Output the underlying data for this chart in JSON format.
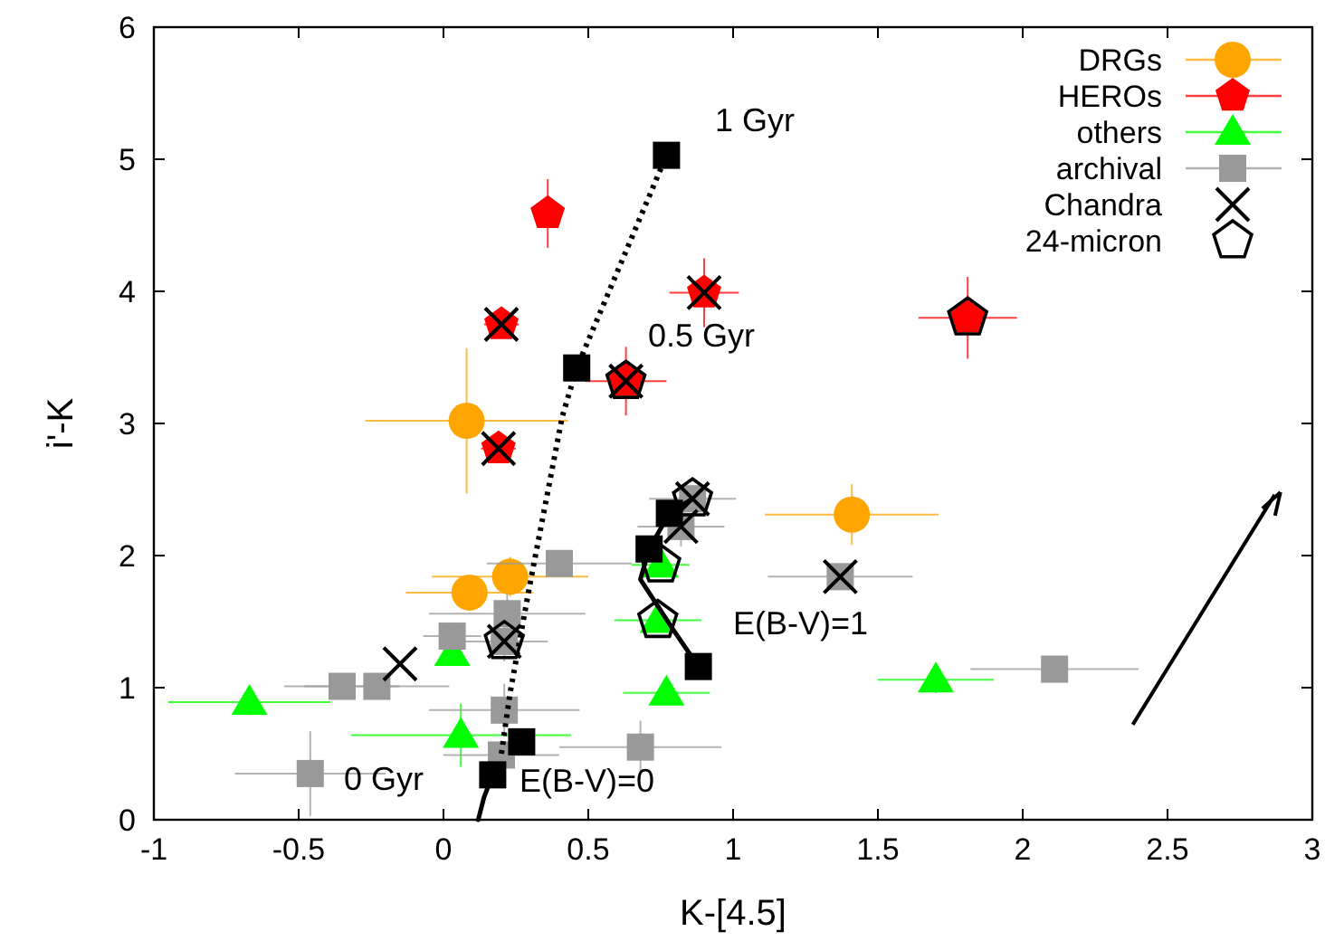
{
  "chart_data": {
    "type": "scatter",
    "xlabel": "K-[4.5]",
    "ylabel": "i'-K",
    "xlim": [
      -1,
      3
    ],
    "ylim": [
      0,
      6
    ],
    "xticks": [
      -1,
      -0.5,
      0,
      0.5,
      1,
      1.5,
      2,
      2.5,
      3
    ],
    "yticks": [
      0,
      1,
      2,
      3,
      4,
      5,
      6
    ],
    "grid": false,
    "legend": "top right",
    "series": [
      {
        "name": "DRGs",
        "marker": "circle",
        "color": "#ffa500",
        "x": [
          0.08,
          0.09,
          0.23,
          1.41
        ],
        "values": [
          3.02,
          1.72,
          1.84,
          2.31
        ],
        "xerrors": [
          0.35,
          0.22,
          0.27,
          0.3
        ],
        "errors": [
          0.55,
          0.12,
          0.15,
          0.23
        ]
      },
      {
        "name": "HEROs",
        "color": "#ff0000",
        "x": [
          0.36,
          0.2,
          0.9,
          0.63,
          0.19,
          1.81
        ],
        "values": [
          4.59,
          3.75,
          3.99,
          3.32,
          2.81,
          3.8
        ],
        "xerrors": [
          null,
          0.06,
          0.12,
          0.14,
          0.06,
          0.17
        ],
        "errors": [
          0.26,
          0.1,
          0.26,
          0.26,
          0.1,
          0.31
        ]
      },
      {
        "name": "others",
        "marker": "triangle",
        "color": "#00ff00",
        "x": [
          -0.67,
          0.03,
          0.06,
          0.75,
          0.74,
          0.77,
          1.7
        ],
        "values": [
          0.89,
          1.26,
          0.64,
          1.93,
          1.51,
          0.96,
          1.06
        ],
        "xerrors": [
          0.28,
          null,
          0.38,
          0.1,
          0.15,
          0.15,
          0.2
        ],
        "errors": [
          0.1,
          0.08,
          0.24,
          0.08,
          0.08,
          0.08,
          0.1
        ]
      },
      {
        "name": "archival",
        "marker": "square",
        "color": "#999999",
        "x": [
          -0.46,
          -0.35,
          -0.23,
          0.03,
          0.22,
          0.21,
          0.4,
          0.21,
          0.2,
          0.68,
          0.86,
          0.82,
          1.37,
          2.11
        ],
        "values": [
          0.35,
          1.01,
          1.01,
          1.39,
          1.56,
          1.35,
          1.94,
          0.83,
          0.49,
          0.55,
          2.43,
          2.22,
          1.84,
          1.14
        ],
        "xerrors": [
          0.26,
          0.2,
          0.25,
          0.1,
          0.27,
          0.15,
          0.25,
          0.26,
          0.2,
          0.28,
          0.15,
          0.15,
          0.25,
          0.29
        ],
        "errors": [
          0.32,
          0.1,
          0.1,
          0.1,
          0.15,
          0.15,
          0.1,
          0.2,
          0.1,
          0.2,
          0.1,
          0.15,
          0.1,
          0.1
        ]
      },
      {
        "type": "line",
        "marker": "none",
        "line_style": "solid",
        "color": "#000000",
        "x": [
          0.12,
          0.14,
          0.17
        ],
        "values": [
          0,
          0.17,
          0.34
        ]
      },
      {
        "type": "line",
        "marker": "none",
        "line_style": "dotted",
        "color": "#000000",
        "x": [
          0.2,
          0.23,
          0.3,
          0.41,
          0.46,
          0.77
        ],
        "values": [
          0.5,
          0.96,
          1.8,
          3.05,
          3.42,
          5.03
        ]
      },
      {
        "type": "line",
        "marker": "none",
        "line_style": "solid",
        "color": "#000000",
        "x": [
          0.88,
          0.79,
          0.68,
          0.71,
          0.78,
          0.86
        ],
        "values": [
          1.16,
          1.45,
          1.82,
          2.05,
          2.32,
          2.43
        ]
      },
      {
        "marker": "square",
        "color": "#000000",
        "x": [
          0.17,
          0.27,
          0.46,
          0.77,
          0.88,
          0.71,
          0.78
        ],
        "values": [
          0.34,
          0.59,
          3.42,
          5.03,
          1.16,
          2.05,
          2.32
        ]
      },
      {
        "name": "Chandra",
        "marker": "cross",
        "color": "#000000",
        "x": [
          0.2,
          0.9,
          0.63,
          0.19,
          0.21,
          0.86,
          0.82,
          1.37,
          -0.15
        ],
        "values": [
          3.75,
          3.99,
          3.32,
          2.81,
          1.35,
          2.43,
          2.22,
          1.84,
          1.18
        ]
      },
      {
        "name": "24-micron",
        "color": "#000000",
        "x": [
          0.63,
          1.81,
          0.75,
          0.74,
          0.21,
          0.86
        ],
        "values": [
          3.32,
          3.8,
          1.93,
          1.51,
          1.35,
          2.43
        ]
      }
    ],
    "annotations": [
      "1 Gyr",
      "0.5 Gyr",
      "0 Gyr",
      "E(B-V)=0",
      "E(B-V)=1"
    ]
  }
}
